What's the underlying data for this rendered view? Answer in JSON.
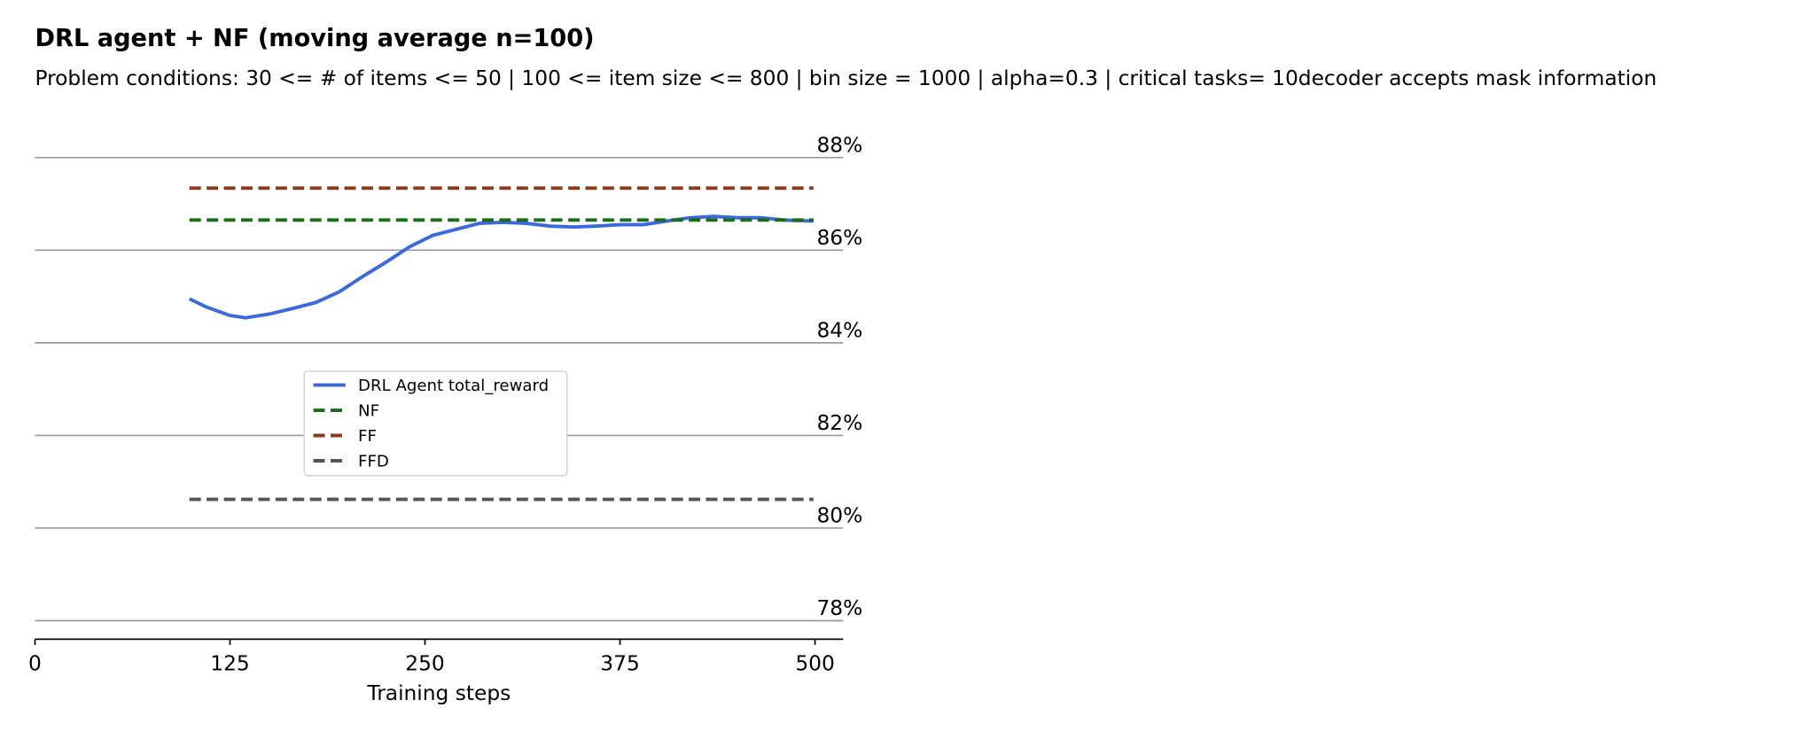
{
  "chart_data": {
    "type": "line",
    "title": "DRL agent + NF (moving average n=100)",
    "subtitle": "Problem conditions: 30 <= # of items <= 50 | 100 <= item size <= 800 | bin size = 1000 | alpha=0.3 | critical tasks= 10decoder accepts mask information",
    "x_label": "Training steps",
    "xlim": [
      0,
      518
    ],
    "xticks": [
      0,
      125,
      250,
      375,
      500
    ],
    "ylim": [
      77.6,
      88.8
    ],
    "yticks": [
      {
        "value": 78,
        "label": "78%"
      },
      {
        "value": 80,
        "label": "80%"
      },
      {
        "value": 82,
        "label": "82%"
      },
      {
        "value": 84,
        "label": "84%"
      },
      {
        "value": 86,
        "label": "86%"
      },
      {
        "value": 88,
        "label": "88%"
      }
    ],
    "grid": true,
    "legend": "center",
    "series": [
      {
        "name": "DRL Agent total_reward",
        "color": "#3b68dc",
        "dash": false,
        "x": [
          99,
          110,
          125,
          135,
          150,
          165,
          180,
          195,
          210,
          225,
          240,
          255,
          270,
          285,
          300,
          315,
          330,
          345,
          360,
          375,
          390,
          405,
          420,
          435,
          450,
          465,
          480,
          499
        ],
        "values": [
          84.95,
          84.77,
          84.59,
          84.54,
          84.62,
          84.74,
          84.87,
          85.1,
          85.43,
          85.74,
          86.07,
          86.32,
          86.45,
          86.58,
          86.6,
          86.58,
          86.52,
          86.5,
          86.52,
          86.55,
          86.55,
          86.63,
          86.7,
          86.73,
          86.7,
          86.7,
          86.65,
          86.63
        ]
      },
      {
        "name": "NF",
        "color": "#1a6b1a",
        "dash": true,
        "x": [
          99,
          499
        ],
        "values": [
          86.65,
          86.65
        ]
      },
      {
        "name": "FF",
        "color": "#8b3a1f",
        "dash": true,
        "x": [
          99,
          499
        ],
        "values": [
          87.34,
          87.34
        ]
      },
      {
        "name": "FFD",
        "color": "#555555",
        "dash": true,
        "x": [
          99,
          499
        ],
        "values": [
          80.62,
          80.62
        ]
      }
    ]
  }
}
